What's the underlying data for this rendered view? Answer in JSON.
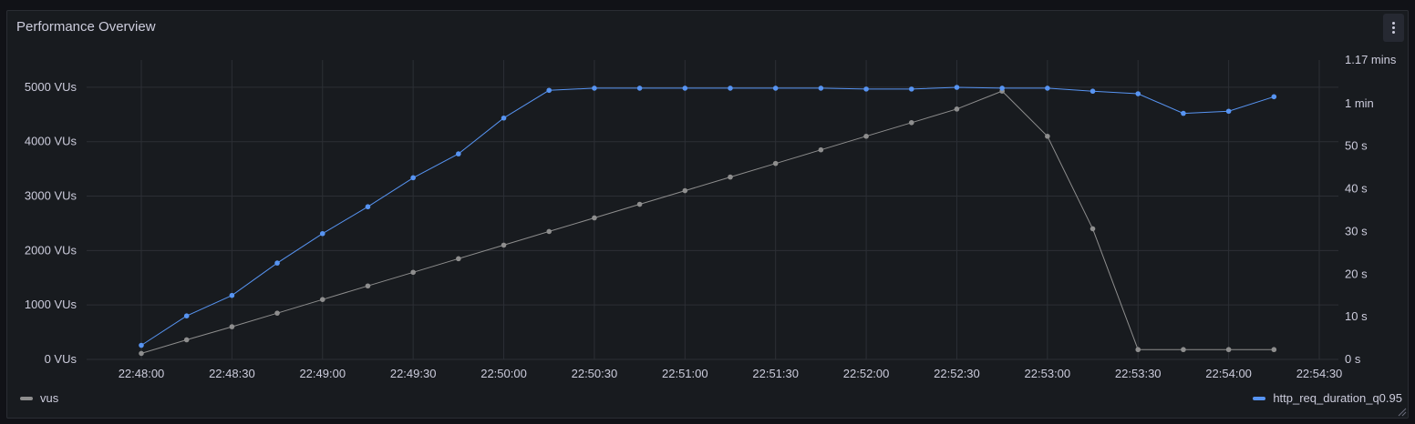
{
  "panel": {
    "title": "Performance Overview",
    "menu_icon": "vertical-dots-icon"
  },
  "chart_data": {
    "type": "line",
    "title": "Performance Overview",
    "x": [
      "22:48:00",
      "22:48:15",
      "22:48:30",
      "22:48:45",
      "22:49:00",
      "22:49:15",
      "22:49:30",
      "22:49:45",
      "22:50:00",
      "22:50:15",
      "22:50:30",
      "22:50:45",
      "22:51:00",
      "22:51:15",
      "22:51:30",
      "22:51:45",
      "22:52:00",
      "22:52:15",
      "22:52:30",
      "22:52:45",
      "22:53:00",
      "22:53:15",
      "22:53:30",
      "22:53:45",
      "22:54:00",
      "22:54:15"
    ],
    "x_ticks": [
      "22:48:00",
      "22:48:30",
      "22:49:00",
      "22:49:30",
      "22:50:00",
      "22:50:30",
      "22:51:00",
      "22:51:30",
      "22:52:00",
      "22:52:30",
      "22:53:00",
      "22:53:30",
      "22:54:00",
      "22:54:30"
    ],
    "y_left": {
      "ticks": [
        0,
        1000,
        2000,
        3000,
        4000,
        5000
      ],
      "tick_labels": [
        "0 VUs",
        "1000 VUs",
        "2000 VUs",
        "3000 VUs",
        "4000 VUs",
        "5000 VUs"
      ],
      "range": [
        0,
        5500
      ]
    },
    "y_right": {
      "ticks": [
        0,
        10,
        20,
        30,
        40,
        50,
        60,
        70.2
      ],
      "tick_labels": [
        "0 s",
        "10 s",
        "20 s",
        "30 s",
        "40 s",
        "50 s",
        "1 min",
        "1.17 mins"
      ],
      "unit": "seconds",
      "range": [
        0,
        70.2
      ]
    },
    "grid": true,
    "legend_placement": "bottom",
    "series": [
      {
        "name": "vus",
        "axis": "left",
        "color": "#8e8e8e",
        "values": [
          110,
          360,
          600,
          850,
          1100,
          1350,
          1600,
          1850,
          2100,
          2350,
          2600,
          2850,
          3100,
          3350,
          3600,
          3850,
          4100,
          4350,
          4600,
          4930,
          4100,
          2400,
          180,
          180,
          180,
          180
        ]
      },
      {
        "name": "http_req_duration_q0.95",
        "axis": "right",
        "color": "#5794f2",
        "values": [
          3.3,
          10.2,
          15.0,
          22.6,
          29.5,
          35.8,
          42.6,
          48.2,
          56.6,
          63.1,
          63.6,
          63.6,
          63.6,
          63.6,
          63.6,
          63.6,
          63.4,
          63.4,
          63.8,
          63.6,
          63.6,
          62.9,
          62.3,
          57.7,
          58.2,
          61.6
        ]
      }
    ]
  }
}
